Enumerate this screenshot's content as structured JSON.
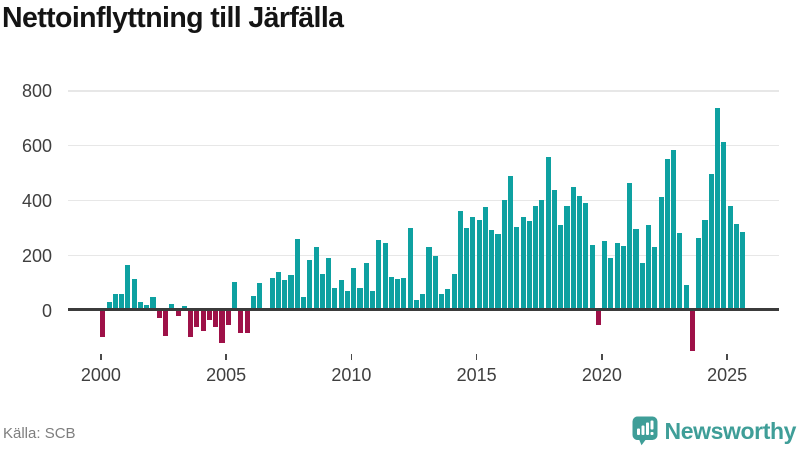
{
  "title": "Nettoinflyttning till Järfälla",
  "source": "Källa: SCB",
  "branding": {
    "wordmark": "Newsworthy",
    "color": "#3f9e98"
  },
  "colors": {
    "positive": "#0ea1a1",
    "negative": "#9e1148",
    "grid": "#e7e7e7",
    "zero_axis": "#3b3b3b",
    "tick": "#4a4a4a",
    "tick_label": "#3f3f3f",
    "title_text": "#141414",
    "source_text": "#7e7e7e"
  },
  "chart_data": {
    "type": "bar",
    "title": "Nettoinflyttning till Järfälla",
    "frequency": "quarterly",
    "x_start": "2000Q1",
    "x_end": "2025Q3",
    "xlabel": "",
    "ylabel": "",
    "x_tick_labels": [
      "2000",
      "2005",
      "2010",
      "2015",
      "2020",
      "2025"
    ],
    "y_tick_labels": [
      "0",
      "200",
      "400",
      "600",
      "800"
    ],
    "ylim": [
      -170,
      880
    ],
    "grid": "horizontal",
    "legend": "none",
    "values": [
      -95,
      30,
      62,
      62,
      168,
      114,
      32,
      22,
      50,
      -27,
      -91,
      24,
      -18,
      18,
      -97,
      -61,
      -73,
      -33,
      -58,
      -119,
      -51,
      105,
      -81,
      -81,
      53,
      100,
      0,
      118,
      142,
      110,
      131,
      262,
      51,
      183,
      232,
      134,
      191,
      81,
      113,
      73,
      156,
      81,
      173,
      71,
      259,
      248,
      122,
      116,
      119,
      301,
      37,
      60,
      230,
      200,
      60,
      80,
      134,
      364,
      302,
      342,
      330,
      376,
      293,
      278,
      403,
      490,
      305,
      340,
      328,
      380,
      404,
      558,
      440,
      312,
      380,
      452,
      418,
      391,
      238,
      -51,
      252,
      190,
      247,
      235,
      465,
      299,
      172,
      313,
      233,
      415,
      554,
      584,
      281,
      93,
      -148,
      263,
      330,
      499,
      739,
      616,
      382,
      317,
      287
    ]
  }
}
